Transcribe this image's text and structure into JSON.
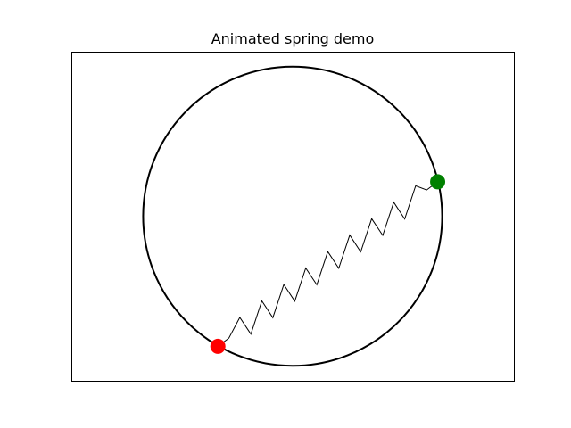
{
  "chart_data": {
    "type": "scatter",
    "title": "Animated spring demo",
    "xlabel": "",
    "ylabel": "",
    "xlim": [
      -1.48,
      1.48
    ],
    "ylim": [
      -1.1,
      1.1
    ],
    "grid": false,
    "axis_ticks": false,
    "circle": {
      "center": [
        0,
        0
      ],
      "radius": 1.0,
      "color": "#000000"
    },
    "points": [
      {
        "x": -0.5,
        "y": -0.87,
        "color": "#ff0000"
      },
      {
        "x": 0.97,
        "y": 0.23,
        "color": "#008000"
      }
    ],
    "spring": {
      "coils": 9,
      "color": "#000000"
    }
  }
}
